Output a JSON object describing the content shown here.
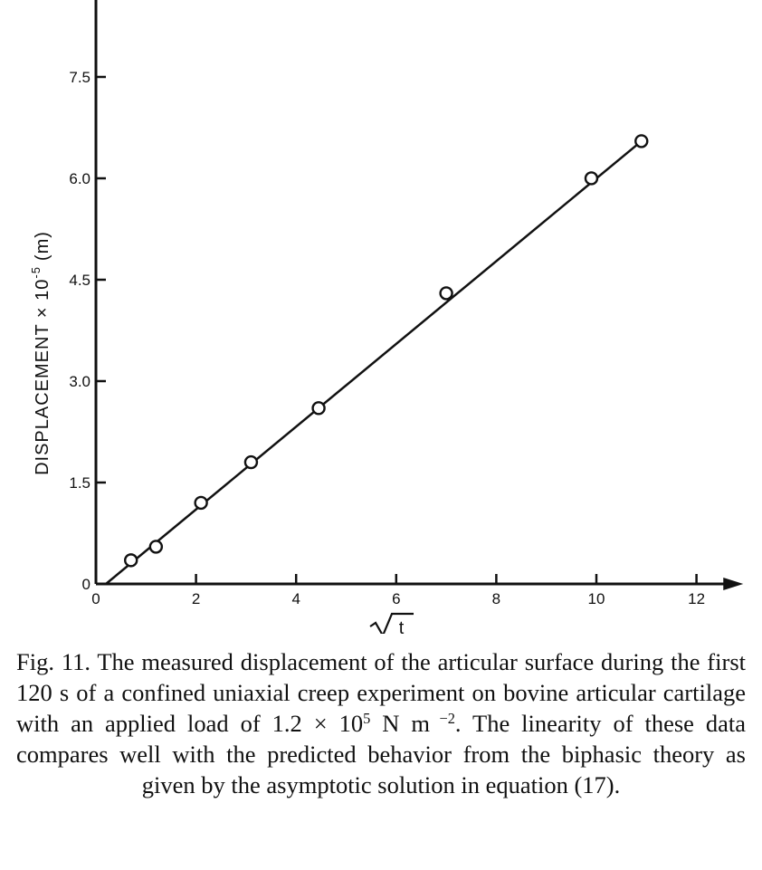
{
  "chart_data": {
    "type": "scatter",
    "title": "",
    "xlabel": "√t",
    "ylabel_main": "DISPLACEMENT × 10",
    "ylabel_exp": "-5",
    "ylabel_unit": "(m)",
    "xlim": [
      0,
      12.5
    ],
    "ylim": [
      0,
      8.8
    ],
    "x_ticks": [
      0,
      2,
      4,
      6,
      8,
      10,
      12
    ],
    "x_tick_labels": [
      "0",
      "2",
      "4",
      "6",
      "8",
      "10",
      "12"
    ],
    "y_ticks": [
      0,
      1.5,
      3.0,
      4.5,
      6.0,
      7.5
    ],
    "y_tick_labels": [
      "0",
      "1.5",
      "3.0",
      "4.5",
      "6.0",
      "7.5"
    ],
    "grid": false,
    "series": [
      {
        "name": "measured",
        "marker": "open-circle",
        "x": [
          0.7,
          1.2,
          2.1,
          3.1,
          4.45,
          7.0,
          9.9,
          10.9
        ],
        "y": [
          0.35,
          0.55,
          1.2,
          1.8,
          2.6,
          4.3,
          6.0,
          6.55
        ]
      },
      {
        "name": "fit",
        "style": "line",
        "x": [
          0.2,
          10.9
        ],
        "y": [
          0.0,
          6.55
        ]
      }
    ]
  },
  "caption": {
    "part1": "Fig. 11. The measured displacement of the articular surface during the first 120 s of a confined uniaxial creep experiment on bovine articular cartilage with an applied load of 1.2 × 10",
    "exp1": "5",
    "part2": " N m",
    "exp2": " −2",
    "part3": ". The linearity of these data compares well with the predicted behavior from the biphasic theory as given by the asymptotic solution in equation (17)."
  }
}
